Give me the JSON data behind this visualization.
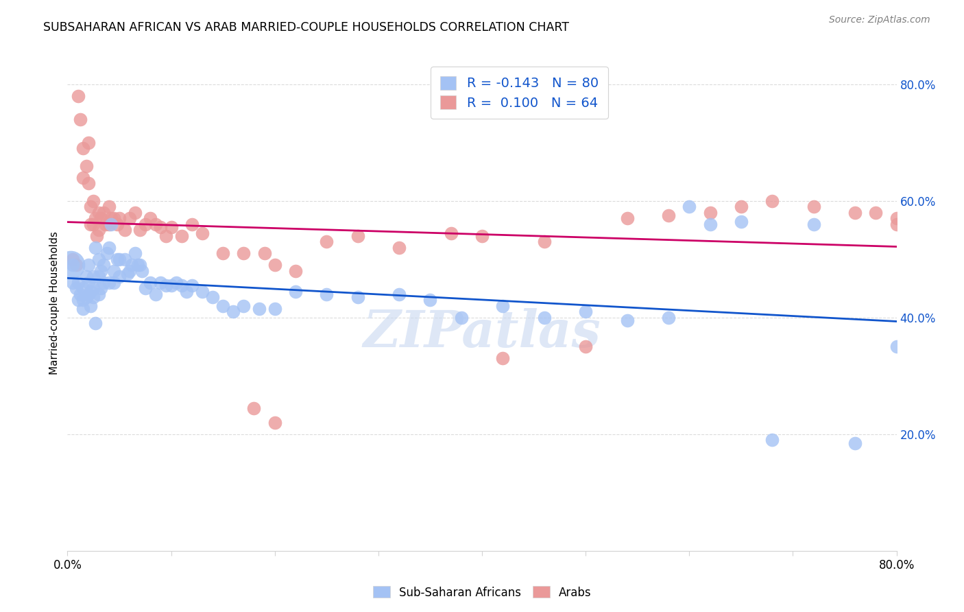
{
  "title": "SUBSAHARAN AFRICAN VS ARAB MARRIED-COUPLE HOUSEHOLDS CORRELATION CHART",
  "source": "Source: ZipAtlas.com",
  "ylabel": "Married-couple Households",
  "x_min": 0.0,
  "x_max": 0.8,
  "y_min": 0.0,
  "y_max": 0.85,
  "blue_color": "#a4c2f4",
  "pink_color": "#ea9999",
  "blue_line_color": "#1155cc",
  "pink_line_color": "#cc0066",
  "blue_R": -0.143,
  "blue_N": 80,
  "pink_R": 0.1,
  "pink_N": 64,
  "watermark": "ZIPatlas",
  "legend_blue_label": "Sub-Saharan Africans",
  "legend_pink_label": "Arabs",
  "blue_scatter_x": [
    0.005,
    0.005,
    0.008,
    0.01,
    0.01,
    0.012,
    0.015,
    0.015,
    0.015,
    0.018,
    0.018,
    0.02,
    0.02,
    0.02,
    0.022,
    0.022,
    0.025,
    0.025,
    0.025,
    0.027,
    0.027,
    0.03,
    0.03,
    0.03,
    0.032,
    0.032,
    0.035,
    0.035,
    0.038,
    0.04,
    0.04,
    0.042,
    0.045,
    0.045,
    0.048,
    0.05,
    0.05,
    0.055,
    0.058,
    0.06,
    0.062,
    0.065,
    0.068,
    0.07,
    0.072,
    0.075,
    0.08,
    0.085,
    0.09,
    0.095,
    0.1,
    0.105,
    0.11,
    0.115,
    0.12,
    0.13,
    0.14,
    0.15,
    0.16,
    0.17,
    0.185,
    0.2,
    0.22,
    0.25,
    0.28,
    0.32,
    0.35,
    0.38,
    0.42,
    0.46,
    0.5,
    0.54,
    0.58,
    0.6,
    0.62,
    0.65,
    0.68,
    0.72,
    0.76,
    0.8
  ],
  "blue_scatter_y": [
    0.49,
    0.46,
    0.45,
    0.43,
    0.46,
    0.44,
    0.45,
    0.43,
    0.415,
    0.47,
    0.435,
    0.49,
    0.46,
    0.44,
    0.445,
    0.42,
    0.47,
    0.45,
    0.435,
    0.52,
    0.39,
    0.5,
    0.47,
    0.44,
    0.48,
    0.45,
    0.49,
    0.46,
    0.51,
    0.52,
    0.46,
    0.56,
    0.48,
    0.46,
    0.5,
    0.5,
    0.47,
    0.5,
    0.475,
    0.48,
    0.49,
    0.51,
    0.49,
    0.49,
    0.48,
    0.45,
    0.46,
    0.44,
    0.46,
    0.455,
    0.455,
    0.46,
    0.455,
    0.445,
    0.455,
    0.445,
    0.435,
    0.42,
    0.41,
    0.42,
    0.415,
    0.415,
    0.445,
    0.44,
    0.435,
    0.44,
    0.43,
    0.4,
    0.42,
    0.4,
    0.41,
    0.395,
    0.4,
    0.59,
    0.56,
    0.565,
    0.19,
    0.56,
    0.185,
    0.35
  ],
  "pink_scatter_x": [
    0.005,
    0.008,
    0.01,
    0.012,
    0.015,
    0.015,
    0.018,
    0.02,
    0.02,
    0.022,
    0.022,
    0.025,
    0.025,
    0.027,
    0.028,
    0.03,
    0.03,
    0.032,
    0.035,
    0.037,
    0.04,
    0.04,
    0.042,
    0.045,
    0.048,
    0.05,
    0.055,
    0.06,
    0.065,
    0.07,
    0.075,
    0.08,
    0.085,
    0.09,
    0.095,
    0.1,
    0.11,
    0.12,
    0.13,
    0.15,
    0.17,
    0.19,
    0.2,
    0.22,
    0.25,
    0.28,
    0.32,
    0.37,
    0.4,
    0.42,
    0.46,
    0.5,
    0.54,
    0.58,
    0.62,
    0.65,
    0.68,
    0.72,
    0.76,
    0.78,
    0.8,
    0.8,
    0.2,
    0.18
  ],
  "pink_scatter_y": [
    0.5,
    0.49,
    0.78,
    0.74,
    0.69,
    0.64,
    0.66,
    0.7,
    0.63,
    0.59,
    0.56,
    0.6,
    0.56,
    0.57,
    0.54,
    0.58,
    0.55,
    0.57,
    0.58,
    0.56,
    0.59,
    0.56,
    0.57,
    0.57,
    0.56,
    0.57,
    0.55,
    0.57,
    0.58,
    0.55,
    0.56,
    0.57,
    0.56,
    0.555,
    0.54,
    0.555,
    0.54,
    0.56,
    0.545,
    0.51,
    0.51,
    0.51,
    0.49,
    0.48,
    0.53,
    0.54,
    0.52,
    0.545,
    0.54,
    0.33,
    0.53,
    0.35,
    0.57,
    0.575,
    0.58,
    0.59,
    0.6,
    0.59,
    0.58,
    0.58,
    0.57,
    0.56,
    0.22,
    0.245
  ]
}
